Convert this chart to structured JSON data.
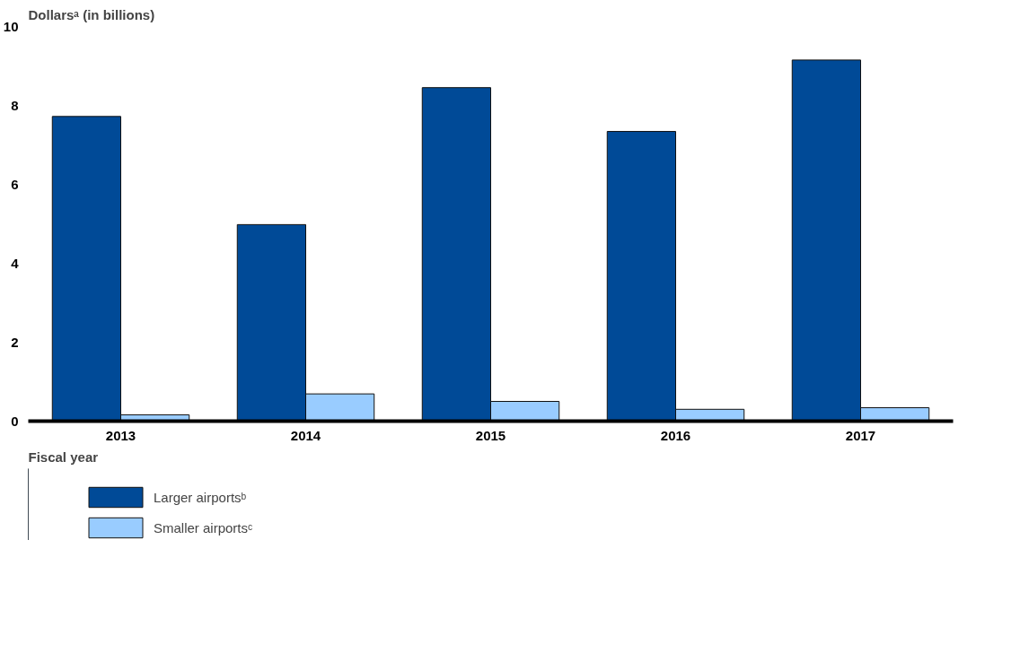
{
  "chart_data": {
    "type": "bar",
    "ylabel": "Dollarsᵃ (in billions)",
    "xlabel": "Fiscal year",
    "categories": [
      "2013",
      "2014",
      "2015",
      "2016",
      "2017"
    ],
    "series": [
      {
        "name": "Larger airportsᵇ",
        "color": "#004a97",
        "values": [
          7.72,
          4.98,
          8.45,
          7.34,
          9.15
        ]
      },
      {
        "name": "Smaller airportsᶜ",
        "color": "#99ccff",
        "values": [
          0.16,
          0.69,
          0.5,
          0.3,
          0.34
        ]
      }
    ],
    "ylim": [
      0,
      10
    ],
    "yticks": [
      0,
      2,
      4,
      6,
      8,
      10
    ],
    "grid": false,
    "legend": "bottom"
  }
}
